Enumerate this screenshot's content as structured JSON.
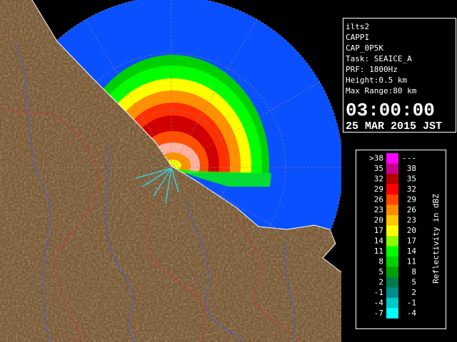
{
  "info": {
    "lines": [
      "ilts2",
      "CAPPI",
      "CAP_0P5K",
      "Task: SEAICE_A",
      "PRF: 1800Hz",
      "Height:0.5 km",
      "Max Range:80 km"
    ],
    "time": "03:00:00",
    "date": "25 MAR 2015 JST"
  },
  "legend": {
    "title": "Reflectivity in dBZ",
    "rows": [
      {
        "low": ">38",
        "high": "---",
        "color": "#ff00ff"
      },
      {
        "low": "35",
        "high": "38",
        "color": "#c8008c"
      },
      {
        "low": "32",
        "high": "35",
        "color": "#b40000"
      },
      {
        "low": "29",
        "high": "32",
        "color": "#ff0000"
      },
      {
        "low": "26",
        "high": "29",
        "color": "#ff4600"
      },
      {
        "low": "23",
        "high": "26",
        "color": "#ff8c00"
      },
      {
        "low": "20",
        "high": "23",
        "color": "#ffc800"
      },
      {
        "low": "17",
        "high": "20",
        "color": "#ffff00"
      },
      {
        "low": "14",
        "high": "17",
        "color": "#8cff00"
      },
      {
        "low": "11",
        "high": "14",
        "color": "#00ff00"
      },
      {
        "low": "8",
        "high": "11",
        "color": "#00d200"
      },
      {
        "low": "5",
        "high": "8",
        "color": "#00a000"
      },
      {
        "low": "2",
        "high": "5",
        "color": "#007850"
      },
      {
        "low": "-1",
        "high": "2",
        "color": "#008c8c"
      },
      {
        "low": "-4",
        "high": "-1",
        "color": "#00c8c8"
      },
      {
        "low": "-7",
        "high": "-4",
        "color": "#00ffff"
      }
    ]
  }
}
